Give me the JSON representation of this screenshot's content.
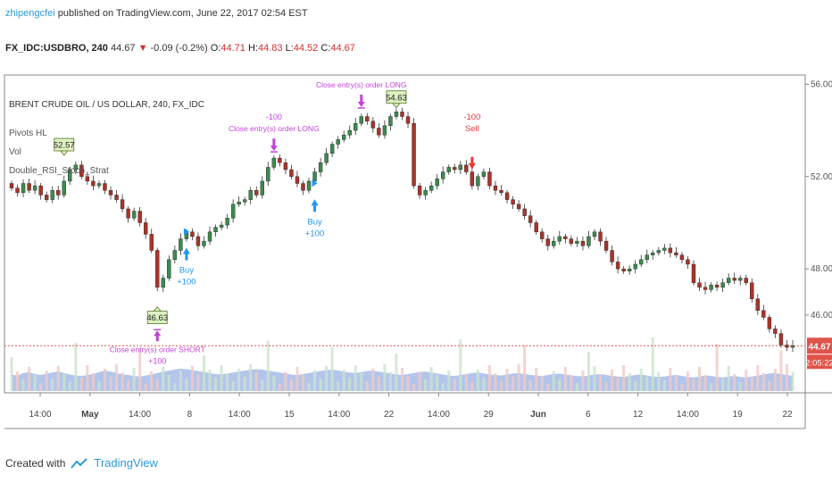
{
  "header": {
    "user": "zhipengcfei",
    "published": " published on TradingView.com, June 22, 2017 02:54 EST",
    "symbol": "FX_IDC:USDBRO, 240",
    "last": " 44.67 ",
    "change_arrow": "▼",
    "change": " -0.09 (-0.2%) ",
    "o_label": "O:",
    "o_val": "44.71",
    "h_label": " H:",
    "h_val": "44.83",
    "l_label": " L:",
    "l_val": "44.52",
    "c_label": " C:",
    "c_val": "44.67"
  },
  "legend": {
    "title": "BRENT CRUDE OIL / US DOLLAR, 240, FX_IDC",
    "items": [
      "Pivots HL",
      "Vol",
      "Double_RSI_Stoch_Strat"
    ]
  },
  "footer": {
    "created": "Created with",
    "brand": "TradingView"
  },
  "colors": {
    "up": "#3c8a4e",
    "down": "#a8342a",
    "price_line": "#e0534a",
    "volume": "#9bb1e6",
    "buy": "#2196f3",
    "sell": "#e53935",
    "close": "#c244d6",
    "pivot_box": "#ddf0c0"
  },
  "chart_data": {
    "type": "candlestick",
    "ylim": [
      44.1,
      56.4
    ],
    "y_ticks": [
      46,
      48,
      52,
      56
    ],
    "y_tick_labels": [
      "46.00",
      "48.00",
      "52.00",
      "56.00"
    ],
    "x_ticks": [
      "14:00",
      "May",
      "14:00",
      "8",
      "14:00",
      "15",
      "14:00",
      "22",
      "14:00",
      "29",
      "Jun",
      "6",
      "12",
      "14:00",
      "19",
      "22"
    ],
    "bold_x_ticks": [
      "May",
      "Jun"
    ],
    "last_price": "44.67",
    "countdown": "2:05:22",
    "close_path": [
      51.5,
      51.3,
      51.7,
      51.4,
      51.6,
      51.2,
      51.0,
      51.4,
      51.2,
      51.8,
      52.3,
      52.5,
      52.0,
      51.8,
      51.6,
      51.7,
      51.4,
      51.2,
      51.0,
      50.6,
      50.2,
      50.5,
      50.0,
      49.5,
      48.8,
      47.2,
      47.6,
      48.4,
      48.8,
      49.3,
      49.6,
      49.4,
      49.0,
      49.2,
      49.6,
      49.8,
      49.9,
      50.2,
      50.8,
      50.9,
      51.0,
      51.4,
      51.2,
      51.8,
      52.4,
      52.8,
      52.6,
      52.3,
      52.0,
      51.7,
      51.4,
      51.8,
      52.2,
      52.6,
      53.0,
      53.4,
      53.6,
      53.8,
      54.0,
      54.3,
      54.6,
      54.4,
      54.1,
      53.8,
      54.2,
      54.6,
      54.8,
      54.6,
      54.3,
      51.6,
      51.2,
      51.4,
      51.6,
      51.9,
      52.2,
      52.4,
      52.3,
      52.5,
      52.2,
      51.6,
      52.0,
      52.2,
      51.6,
      51.4,
      51.3,
      51.0,
      50.8,
      50.6,
      50.3,
      50.0,
      49.6,
      49.3,
      49.0,
      49.2,
      49.4,
      49.3,
      49.1,
      49.2,
      49.0,
      49.4,
      49.6,
      49.2,
      48.8,
      48.3,
      48.0,
      47.9,
      48.0,
      48.2,
      48.4,
      48.6,
      48.7,
      48.8,
      48.9,
      48.7,
      48.6,
      48.4,
      48.2,
      47.4,
      47.2,
      47.1,
      47.3,
      47.2,
      47.4,
      47.6,
      47.5,
      47.6,
      47.4,
      46.7,
      46.2,
      45.9,
      45.4,
      45.2,
      44.7,
      44.6,
      44.67
    ],
    "volume_bg": [
      30,
      28,
      33,
      35,
      31,
      29,
      32,
      34,
      36,
      33,
      30,
      28,
      27,
      29,
      31,
      35,
      38,
      36,
      33,
      30,
      29,
      27,
      26,
      28,
      30,
      33,
      36,
      38,
      40,
      42,
      41,
      39,
      37,
      35,
      33,
      31,
      30,
      32,
      34,
      36,
      38,
      40,
      41,
      40,
      38,
      36,
      34,
      32,
      30,
      29,
      31,
      33,
      35,
      37,
      39,
      40,
      38,
      36,
      34,
      33,
      35,
      37,
      38,
      36,
      34,
      32,
      30,
      29,
      31,
      33,
      35,
      36,
      34,
      32,
      30,
      28,
      27,
      29,
      31,
      33,
      34,
      32,
      30,
      29,
      28,
      30,
      32,
      33,
      31,
      29,
      28,
      27,
      29,
      31,
      32,
      30,
      28,
      27,
      26,
      28,
      30,
      31,
      29,
      27,
      26,
      25,
      27,
      29,
      30,
      28,
      26,
      25,
      26,
      28,
      29,
      27,
      25,
      24,
      26,
      28,
      27,
      25,
      24,
      26,
      27,
      25,
      24,
      26,
      28,
      30,
      32,
      33,
      31,
      29,
      27
    ],
    "markers": [
      {
        "kind": "pivot",
        "label": "52.57",
        "x_index": 9,
        "y": 52.57,
        "pos": "above"
      },
      {
        "kind": "pivot",
        "label": "46.63",
        "x_index": 25,
        "y": 46.63,
        "pos": "below"
      },
      {
        "kind": "pivot",
        "label": "54.63",
        "x_index": 66,
        "y": 54.63,
        "pos": "above"
      },
      {
        "kind": "buy",
        "label": "Buy",
        "qty": "+100",
        "x_index": 30,
        "y": 49.3
      },
      {
        "kind": "buy",
        "label": "Buy",
        "qty": "+100",
        "x_index": 52,
        "y": 51.4
      },
      {
        "kind": "sell",
        "label": "Sell",
        "qty": "-100",
        "x_index": 79,
        "y": 52.0
      },
      {
        "kind": "close",
        "label": "Close entry(s) order LONG",
        "qty": "-100",
        "x_index": 45,
        "y": 52.8,
        "pos": "above"
      },
      {
        "kind": "close",
        "label": "Close entry(s) order LONG",
        "qty": "",
        "x_index": 60,
        "y": 54.7,
        "pos": "above"
      },
      {
        "kind": "close",
        "label": "Close entry(s) order SHORT",
        "qty": "+100",
        "x_index": 25,
        "y": 46.1,
        "pos": "below"
      }
    ]
  }
}
